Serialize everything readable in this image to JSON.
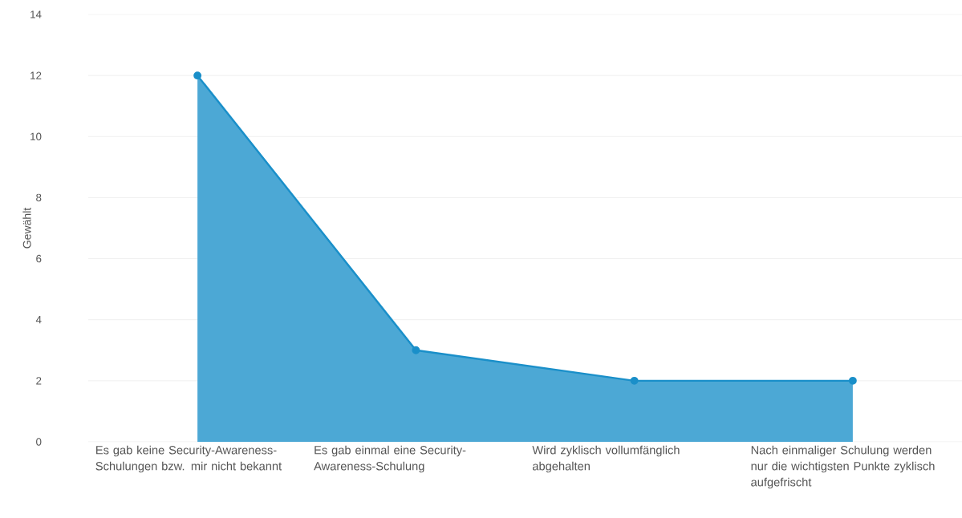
{
  "chart_data": {
    "type": "area",
    "ylabel": "Gewählt",
    "categories": [
      "Es gab keine Security-Awareness-Schulungen bzw. mir nicht bekannt",
      "Es gab einmal eine Security-Awareness-Schulung",
      "Wird zyklisch vollumfänglich abgehalten",
      "Nach einmaliger Schulung werden nur die wichtigsten Punkte zyklisch aufgefrischt"
    ],
    "values": [
      12,
      3,
      2,
      2
    ],
    "color": "#1a8fc9",
    "ylim": [
      0,
      14
    ],
    "yticks": [
      0,
      2,
      4,
      6,
      8,
      10,
      12,
      14
    ],
    "grid": "y",
    "marker": "circle",
    "line_style": "solid"
  }
}
